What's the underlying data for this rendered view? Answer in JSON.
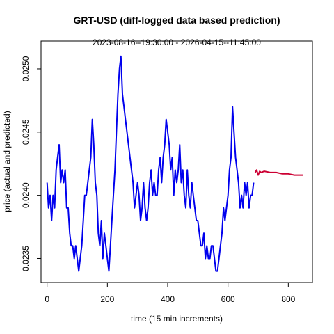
{
  "chart_data": {
    "type": "line",
    "title": "GRT-USD (diff-logged data based prediction)",
    "subtitle": "2023-08-16--19:30:00  -  2026-04-15--11:45:00",
    "xlabel": "time (15 min increments)",
    "ylabel": "price (actual and predicted)",
    "xlim": [
      -20,
      880
    ],
    "ylim": [
      0.02331,
      0.02522
    ],
    "x_ticks": [
      0,
      200,
      400,
      600,
      800
    ],
    "y_ticks": [
      0.0235,
      0.024,
      0.0245,
      0.025
    ],
    "x_tick_labels": [
      "0",
      "200",
      "400",
      "600",
      "800"
    ],
    "y_tick_labels": [
      "0.0235",
      "0.0240",
      "0.0245",
      "0.0250"
    ],
    "grid": false,
    "series": [
      {
        "color": "#0000ee",
        "x": [
          0,
          5,
          10,
          15,
          20,
          25,
          30,
          35,
          40,
          45,
          50,
          55,
          60,
          65,
          70,
          75,
          80,
          85,
          90,
          95,
          100,
          105,
          110,
          115,
          120,
          125,
          130,
          135,
          140,
          145,
          150,
          155,
          160,
          165,
          170,
          175,
          180,
          185,
          190,
          195,
          200,
          205,
          210,
          215,
          220,
          225,
          230,
          235,
          240,
          245,
          250,
          255,
          260,
          265,
          270,
          275,
          280,
          285,
          290,
          295,
          300,
          305,
          310,
          315,
          320,
          325,
          330,
          335,
          340,
          345,
          350,
          355,
          360,
          365,
          370,
          375,
          380,
          385,
          390,
          395,
          400,
          405,
          410,
          415,
          420,
          425,
          430,
          435,
          440,
          445,
          450,
          455,
          460,
          465,
          470,
          475,
          480,
          485,
          490,
          495,
          500,
          505,
          510,
          515,
          520,
          525,
          530,
          535,
          540,
          545,
          550,
          555,
          560,
          565,
          570,
          575,
          580,
          585,
          590,
          595,
          600,
          605,
          610,
          615,
          620,
          625,
          630,
          635,
          640,
          645,
          650,
          655,
          660,
          665,
          670,
          675,
          680,
          685
        ],
        "values": [
          0.0241,
          0.0239,
          0.024,
          0.0238,
          0.024,
          0.0239,
          0.0242,
          0.0243,
          0.0244,
          0.0241,
          0.0242,
          0.0241,
          0.0242,
          0.0239,
          0.0239,
          0.0237,
          0.0236,
          0.0236,
          0.0235,
          0.0236,
          0.0235,
          0.0234,
          0.0235,
          0.0236,
          0.0238,
          0.024,
          0.024,
          0.0241,
          0.0242,
          0.0243,
          0.0246,
          0.0244,
          0.0241,
          0.024,
          0.0237,
          0.0236,
          0.0238,
          0.0235,
          0.0237,
          0.0236,
          0.0235,
          0.0234,
          0.0236,
          0.0238,
          0.024,
          0.0242,
          0.0245,
          0.0248,
          0.025,
          0.0251,
          0.0248,
          0.0247,
          0.0246,
          0.0245,
          0.0244,
          0.0243,
          0.0242,
          0.0241,
          0.0239,
          0.024,
          0.0241,
          0.024,
          0.0238,
          0.0239,
          0.0241,
          0.0239,
          0.0238,
          0.0239,
          0.0241,
          0.0242,
          0.024,
          0.0241,
          0.024,
          0.024,
          0.0242,
          0.0243,
          0.0241,
          0.0243,
          0.0244,
          0.0246,
          0.0245,
          0.0244,
          0.0242,
          0.0243,
          0.024,
          0.0242,
          0.0241,
          0.0242,
          0.0244,
          0.0241,
          0.0242,
          0.024,
          0.0239,
          0.0242,
          0.024,
          0.0239,
          0.0241,
          0.024,
          0.0239,
          0.0238,
          0.0238,
          0.0237,
          0.0236,
          0.0236,
          0.0237,
          0.0235,
          0.0236,
          0.0235,
          0.0235,
          0.0236,
          0.0236,
          0.0235,
          0.0234,
          0.0234,
          0.0235,
          0.0236,
          0.0237,
          0.0239,
          0.0238,
          0.0239,
          0.024,
          0.0242,
          0.0243,
          0.0247,
          0.0245,
          0.0243,
          0.0242,
          0.0241,
          0.0239,
          0.024,
          0.0239,
          0.0241,
          0.024,
          0.0241,
          0.0239,
          0.024,
          0.024,
          0.0241
        ]
      },
      {
        "color": "#cc0033",
        "x": [
          690,
          695,
          700,
          705,
          710,
          720,
          740,
          760,
          780,
          800,
          820,
          840,
          850
        ],
        "values": [
          0.02418,
          0.0242,
          0.02416,
          0.02419,
          0.02418,
          0.02419,
          0.02418,
          0.02418,
          0.02417,
          0.02417,
          0.02416,
          0.02416,
          0.02416
        ]
      }
    ]
  }
}
